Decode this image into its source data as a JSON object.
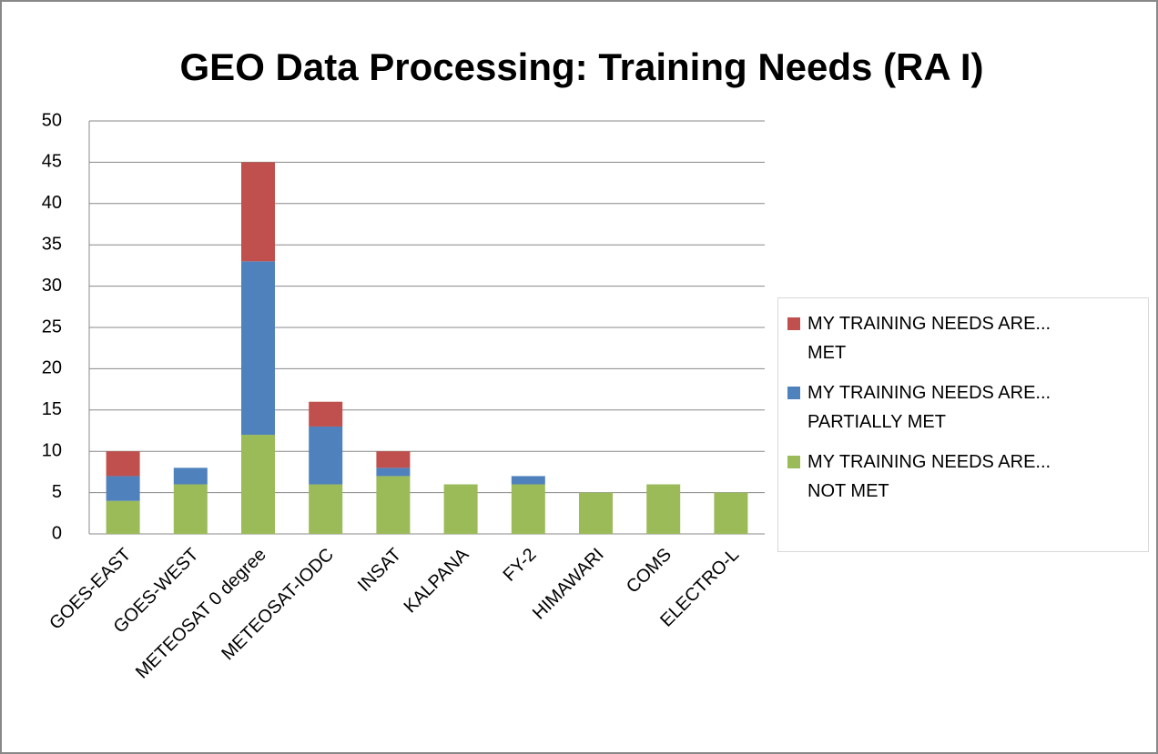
{
  "chart_data": {
    "type": "bar",
    "stacked": true,
    "title": "GEO Data Processing: Training Needs (RA I)",
    "categories": [
      "GOES-EAST",
      "GOES-WEST",
      "METEOSAT 0 degree",
      "METEOSAT-IODC",
      "INSAT",
      "KALPANA",
      "FY-2",
      "HIMAWARI",
      "COMS",
      "ELECTRO-L"
    ],
    "series": [
      {
        "name": "MY TRAINING NEEDS ARE... NOT MET",
        "color": "#9bbb59",
        "values": [
          4,
          6,
          12,
          6,
          7,
          6,
          6,
          5,
          6,
          5
        ]
      },
      {
        "name": "MY TRAINING NEEDS ARE... PARTIALLY MET",
        "color": "#4f81bd",
        "values": [
          3,
          2,
          21,
          7,
          1,
          0,
          1,
          0,
          0,
          0
        ]
      },
      {
        "name": "MY TRAINING NEEDS ARE... MET",
        "color": "#c0504d",
        "values": [
          3,
          0,
          12,
          3,
          2,
          0,
          0,
          0,
          0,
          0
        ]
      }
    ],
    "ylim": [
      0,
      50
    ],
    "yticks": [
      0,
      5,
      10,
      15,
      20,
      25,
      30,
      35,
      40,
      45,
      50
    ],
    "grid": true,
    "legend": "right"
  }
}
